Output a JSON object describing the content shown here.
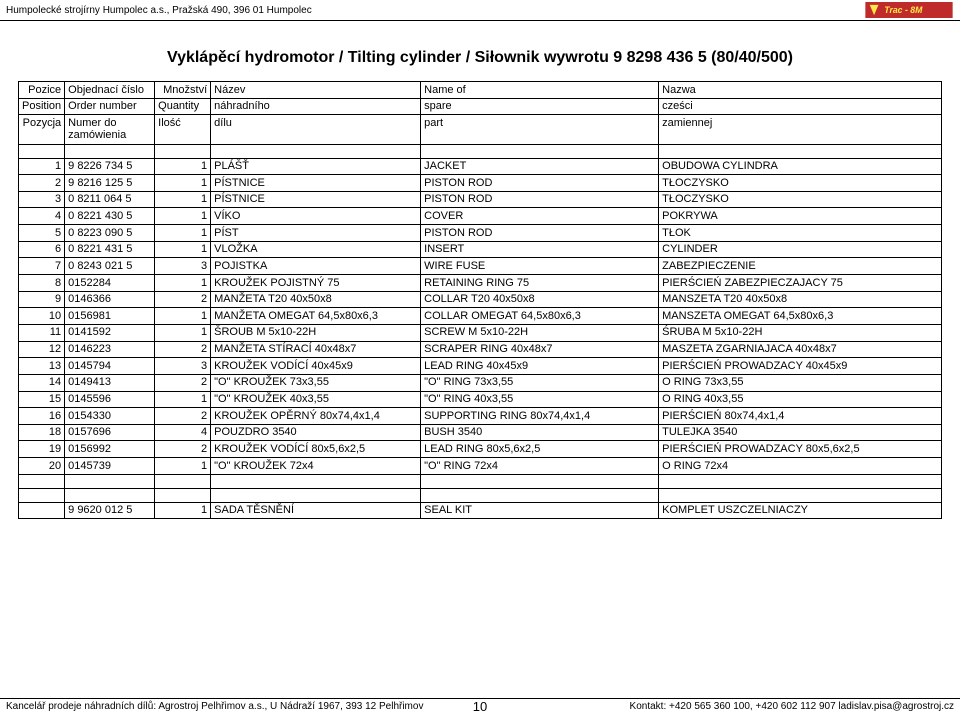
{
  "header": {
    "company": "Humpolecké strojírny Humpolec a.s., Pražská 490, 396 01 Humpolec"
  },
  "title": "Vyklápěcí hydromotor / Tilting cylinder / Siłownik wywrotu 9 8298 436 5 (80/40/500)",
  "table": {
    "head": {
      "r1c1": "Pozice",
      "r1c2": "Objednací číslo",
      "r1c3": "Množství",
      "r1c4": "Název",
      "r1c5": "Name of",
      "r1c6": "Nazwa",
      "r2c1": "Position",
      "r2c2": "Order number",
      "r2c3": "Quantity",
      "r2c4": "náhradního",
      "r2c5": "spare",
      "r2c6": "cześci",
      "r3c1": "Pozycja",
      "r3c2": "Numer do zamówienia",
      "r3c3": "Ilość",
      "r3c4": "dílu",
      "r3c5": "part",
      "r3c6": "zamiennej"
    },
    "rows": [
      {
        "pos": "1",
        "order": "9 8226 734 5",
        "qty": "1",
        "n1": "PLÁŠŤ",
        "n2": "JACKET",
        "n3": "OBUDOWA CYLINDRA"
      },
      {
        "pos": "2",
        "order": "9 8216 125 5",
        "qty": "1",
        "n1": "PÍSTNICE",
        "n2": "PISTON ROD",
        "n3": "TŁOCZYSKO"
      },
      {
        "pos": "3",
        "order": "0 8211 064 5",
        "qty": "1",
        "n1": "PÍSTNICE",
        "n2": "PISTON ROD",
        "n3": "TŁOCZYSKO"
      },
      {
        "pos": "4",
        "order": "0 8221 430 5",
        "qty": "1",
        "n1": "VÍKO",
        "n2": "COVER",
        "n3": "POKRYWA"
      },
      {
        "pos": "5",
        "order": "0 8223 090 5",
        "qty": "1",
        "n1": "PÍST",
        "n2": "PISTON ROD",
        "n3": "TŁOK"
      },
      {
        "pos": "6",
        "order": "0 8221 431 5",
        "qty": "1",
        "n1": "VLOŽKA",
        "n2": "INSERT",
        "n3": "CYLINDER"
      },
      {
        "pos": "7",
        "order": "0 8243 021 5",
        "qty": "3",
        "n1": "POJISTKA",
        "n2": "WIRE FUSE",
        "n3": "ZABEZPIECZENIE"
      },
      {
        "pos": "8",
        "order": "0152284",
        "qty": "1",
        "n1": "KROUŽEK POJISTNÝ 75",
        "n2": "RETAINING RING 75",
        "n3": "PIERŚCIEŃ ZABEZPIECZAJACY 75"
      },
      {
        "pos": "9",
        "order": "0146366",
        "qty": "2",
        "n1": "MANŽETA T20 40x50x8",
        "n2": "COLLAR T20 40x50x8",
        "n3": "MANSZETA T20 40x50x8"
      },
      {
        "pos": "10",
        "order": "0156981",
        "qty": "1",
        "n1": "MANŽETA OMEGAT 64,5x80x6,3",
        "n2": "COLLAR OMEGAT 64,5x80x6,3",
        "n3": "MANSZETA OMEGAT 64,5x80x6,3"
      },
      {
        "pos": "11",
        "order": "0141592",
        "qty": "1",
        "n1": "ŠROUB M 5x10-22H",
        "n2": "SCREW M 5x10-22H",
        "n3": "ŚRUBA M 5x10-22H"
      },
      {
        "pos": "12",
        "order": "0146223",
        "qty": "2",
        "n1": "MANŽETA STÍRACÍ 40x48x7",
        "n2": "SCRAPER RING 40x48x7",
        "n3": "MASZETA ZGARNIAJACA 40x48x7"
      },
      {
        "pos": "13",
        "order": "0145794",
        "qty": "3",
        "n1": "KROUŽEK VODÍCÍ 40x45x9",
        "n2": "LEAD RING 40x45x9",
        "n3": "PIERŚCIEŃ PROWADZACY 40x45x9"
      },
      {
        "pos": "14",
        "order": "0149413",
        "qty": "2",
        "n1": "\"O\" KROUŽEK 73x3,55",
        "n2": "\"O\" RING 73x3,55",
        "n3": "O RING 73x3,55"
      },
      {
        "pos": "15",
        "order": "0145596",
        "qty": "1",
        "n1": "\"O\" KROUŽEK 40x3,55",
        "n2": "\"O\" RING 40x3,55",
        "n3": "O RING 40x3,55"
      },
      {
        "pos": "16",
        "order": "0154330",
        "qty": "2",
        "n1": "KROUŽEK OPĚRNÝ 80x74,4x1,4",
        "n2": "SUPPORTING RING 80x74,4x1,4",
        "n3": "PIERŚCIEŃ 80x74,4x1,4"
      },
      {
        "pos": "18",
        "order": "0157696",
        "qty": "4",
        "n1": "POUZDRO 3540",
        "n2": "BUSH 3540",
        "n3": "TULEJKA 3540"
      },
      {
        "pos": "19",
        "order": "0156992",
        "qty": "2",
        "n1": "KROUŽEK VODÍCÍ 80x5,6x2,5",
        "n2": "LEAD RING 80x5,6x2,5",
        "n3": "PIERŚCIEŃ PROWADZACY 80x5,6x2,5"
      },
      {
        "pos": "20",
        "order": "0145739",
        "qty": "1",
        "n1": "\"O\" KROUŽEK 72x4",
        "n2": "\"O\" RING 72x4",
        "n3": "O RING 72x4"
      }
    ],
    "footer_row": {
      "pos": "",
      "order": "9 9620 012 5",
      "qty": "1",
      "n1": "SADA TĚSNĚNÍ",
      "n2": "SEAL KIT",
      "n3": "KOMPLET USZCZELNIACZY"
    }
  },
  "footer": {
    "left": "Kancelář prodeje náhradních dílů: Agrostroj Pelhřimov a.s., U Nádraží 1967, 393 12 Pelhřimov",
    "page": "10",
    "right": "Kontakt: +420 565 360 100, +420 602 112 907 ladislav.pisa@agrostroj.cz"
  }
}
